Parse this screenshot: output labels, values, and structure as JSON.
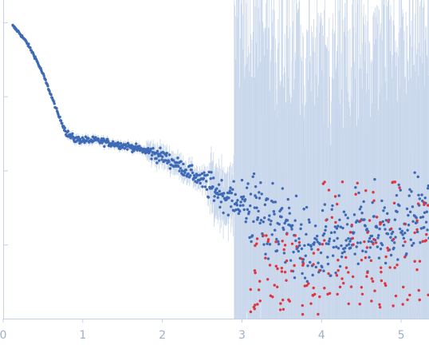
{
  "chart_data": {
    "type": "scatter",
    "title": "",
    "xlabel": "",
    "ylabel": "",
    "xlim": [
      0,
      5.35
    ],
    "y_scale": "log",
    "y_decades_shown": 4,
    "grid": false,
    "x_ticks": [
      {
        "value": 0,
        "label": "0"
      },
      {
        "value": 1,
        "label": "1"
      },
      {
        "value": 2,
        "label": "2"
      },
      {
        "value": 3,
        "label": "3"
      },
      {
        "value": 4,
        "label": "4"
      },
      {
        "value": 5,
        "label": "5"
      }
    ],
    "colors": {
      "axis": "#c5d0e4",
      "tick_label": "#9fb0cc",
      "error_bar": "#c9d7ec",
      "points_positive": "#3e6ab5",
      "points_outlier": "#e0353f"
    },
    "series": [
      {
        "name": "",
        "role": "measured intensity (log10 units, relative)",
        "curve_x": [
          0.12,
          0.2,
          0.3,
          0.4,
          0.5,
          0.6,
          0.7,
          0.8,
          0.9,
          1.0,
          1.2,
          1.4,
          1.6,
          1.8,
          2.0,
          2.2,
          2.4,
          2.6,
          2.8,
          3.0,
          3.2,
          3.4,
          3.6,
          3.8,
          4.0,
          4.2,
          4.4,
          4.6,
          4.8,
          5.0,
          5.2,
          5.35
        ],
        "curve_y": [
          3.95,
          3.86,
          3.72,
          3.53,
          3.3,
          3.02,
          2.73,
          2.5,
          2.42,
          2.41,
          2.4,
          2.36,
          2.32,
          2.26,
          2.19,
          2.07,
          1.93,
          1.78,
          1.65,
          1.55,
          1.45,
          1.34,
          1.15,
          0.95,
          0.9,
          1.0,
          1.1,
          1.2,
          1.25,
          1.3,
          1.4,
          1.45
        ]
      },
      {
        "name": "",
        "role": "negative / outlier points (red)",
        "x_range": [
          3.05,
          5.35
        ],
        "y_range": [
          0.05,
          1.95
        ]
      }
    ]
  }
}
